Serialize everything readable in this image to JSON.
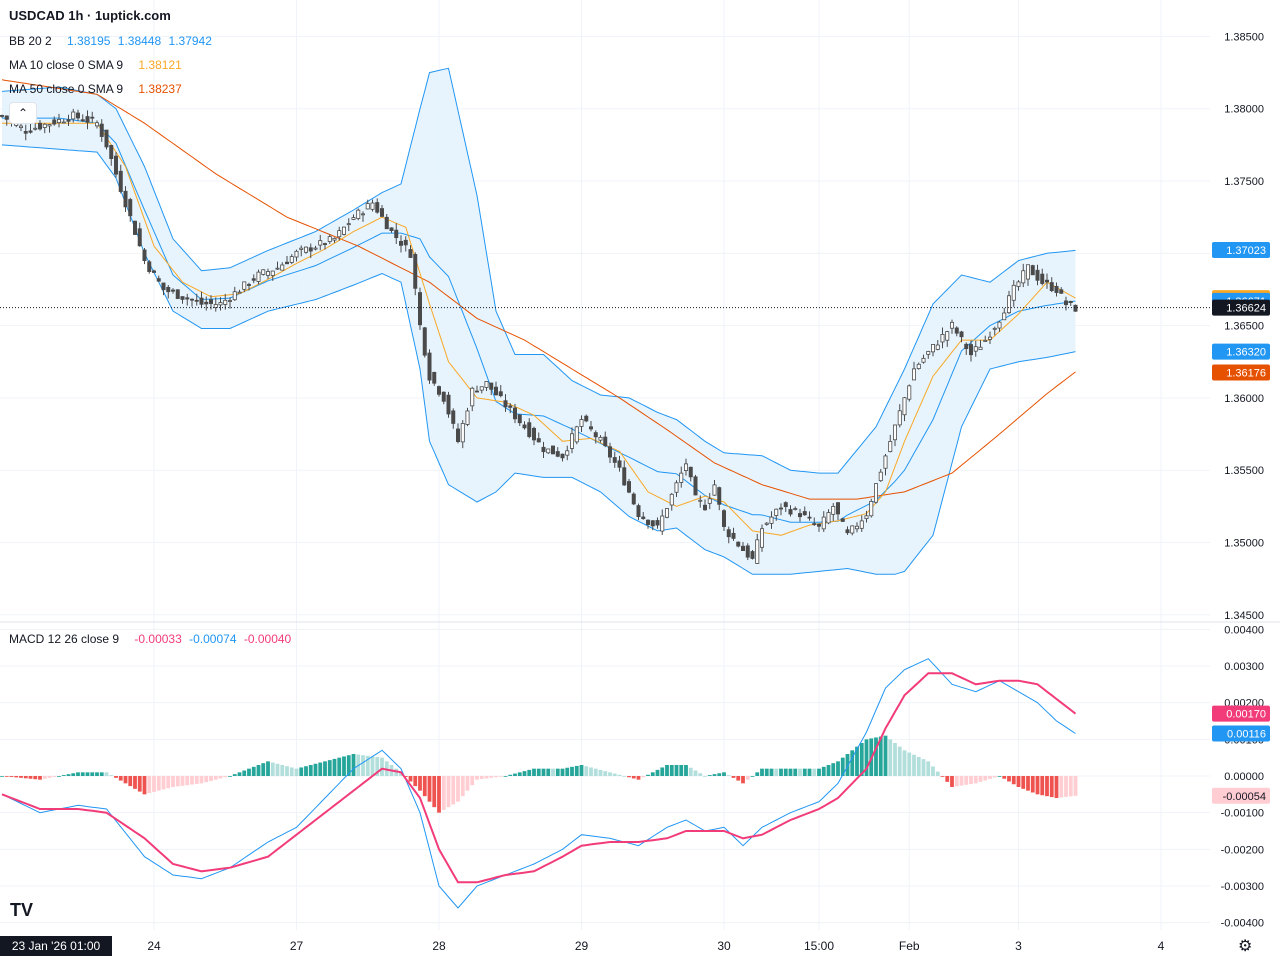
{
  "header": {
    "title": "USDCAD 1h · 1uptick.com",
    "bb": {
      "label": "BB 20 2",
      "basis": "1.38195",
      "upper": "1.38448",
      "lower": "1.37942"
    },
    "ma10": {
      "label": "MA 10 close 0 SMA 9",
      "value": "1.38121"
    },
    "ma50": {
      "label": "MA 50 close 0 SMA 9",
      "value": "1.38237"
    },
    "macd": {
      "label": "MACD 12 26 close 9",
      "hist": "-0.00033",
      "macd": "-0.00074",
      "signal": "-0.00040"
    }
  },
  "colors": {
    "up": "#26a69a",
    "down": "#ef5350",
    "upLight": "#b2dfdb",
    "downLight": "#ffcdd2",
    "bb": "#2196f3",
    "bbFill": "#e3f2fd",
    "ma10": "#f9a825",
    "ma50": "#e65100",
    "macdLine": "#2196f3",
    "signalLine": "#f23c79",
    "candle": "#4a4a4a"
  },
  "collapse_icon": "chevron-up-icon",
  "crosshair_date": "23 Jan '26  01:00",
  "chart_data": [
    {
      "type": "candlestick",
      "title": "USDCAD 1h · 1uptick.com",
      "ylim": [
        1.3445,
        1.386
      ],
      "y_ticks": [
        "1.38500",
        "1.38000",
        "1.37500",
        "1.37000",
        "1.36500",
        "1.36000",
        "1.35500",
        "1.35000",
        "1.34500"
      ],
      "x_ticks": [
        "24",
        "27",
        "28",
        "29",
        "30",
        "15:00",
        "Feb",
        "3",
        "4"
      ],
      "x_tick_index": [
        32,
        62,
        92,
        122,
        152,
        172,
        191,
        214,
        244
      ],
      "price_labels": [
        {
          "text": "1.37023",
          "value": 1.37023,
          "color": "#2196f3"
        },
        {
          "text": "1.36690",
          "value": 1.3669,
          "color": "#f9a825"
        },
        {
          "text": "1.36671",
          "value": 1.36671,
          "color": "#2196f3"
        },
        {
          "text": "1.36624",
          "value": 1.36624,
          "color": "#131722"
        },
        {
          "text": "1.36320",
          "value": 1.3632,
          "color": "#2196f3"
        },
        {
          "text": "1.36176",
          "value": 1.36176,
          "color": "#e65100"
        }
      ],
      "current_price": 1.36624,
      "close_keypoints": [
        [
          0,
          1.3795
        ],
        [
          5,
          1.3785
        ],
        [
          10,
          1.379
        ],
        [
          15,
          1.3795
        ],
        [
          20,
          1.379
        ],
        [
          22,
          1.3775
        ],
        [
          26,
          1.3735
        ],
        [
          30,
          1.3695
        ],
        [
          34,
          1.3675
        ],
        [
          38,
          1.367
        ],
        [
          42,
          1.3665
        ],
        [
          46,
          1.3665
        ],
        [
          50,
          1.3675
        ],
        [
          54,
          1.3685
        ],
        [
          58,
          1.369
        ],
        [
          62,
          1.37
        ],
        [
          66,
          1.3705
        ],
        [
          70,
          1.371
        ],
        [
          74,
          1.3725
        ],
        [
          78,
          1.3735
        ],
        [
          82,
          1.3715
        ],
        [
          86,
          1.37
        ],
        [
          88,
          1.365
        ],
        [
          90,
          1.3615
        ],
        [
          93,
          1.36
        ],
        [
          96,
          1.357
        ],
        [
          99,
          1.3605
        ],
        [
          102,
          1.361
        ],
        [
          106,
          1.3595
        ],
        [
          110,
          1.358
        ],
        [
          114,
          1.3565
        ],
        [
          118,
          1.356
        ],
        [
          122,
          1.3585
        ],
        [
          126,
          1.357
        ],
        [
          130,
          1.355
        ],
        [
          134,
          1.352
        ],
        [
          138,
          1.351
        ],
        [
          142,
          1.354
        ],
        [
          144,
          1.3555
        ],
        [
          146,
          1.353
        ],
        [
          148,
          1.3525
        ],
        [
          150,
          1.354
        ],
        [
          152,
          1.351
        ],
        [
          156,
          1.3495
        ],
        [
          158,
          1.3488
        ],
        [
          160,
          1.351
        ],
        [
          164,
          1.3525
        ],
        [
          168,
          1.352
        ],
        [
          172,
          1.351
        ],
        [
          175,
          1.3525
        ],
        [
          178,
          1.3505
        ],
        [
          182,
          1.352
        ],
        [
          186,
          1.356
        ],
        [
          189,
          1.359
        ],
        [
          192,
          1.362
        ],
        [
          196,
          1.3635
        ],
        [
          200,
          1.365
        ],
        [
          204,
          1.363
        ],
        [
          207,
          1.364
        ],
        [
          210,
          1.3655
        ],
        [
          213,
          1.3675
        ],
        [
          216,
          1.369
        ],
        [
          219,
          1.368
        ],
        [
          222,
          1.3675
        ],
        [
          224,
          1.3665
        ],
        [
          226,
          1.3662
        ]
      ],
      "ma10_keypoints": [
        [
          0,
          1.379
        ],
        [
          10,
          1.379
        ],
        [
          20,
          1.379
        ],
        [
          26,
          1.376
        ],
        [
          32,
          1.3705
        ],
        [
          38,
          1.368
        ],
        [
          44,
          1.367
        ],
        [
          50,
          1.3672
        ],
        [
          56,
          1.3682
        ],
        [
          62,
          1.3693
        ],
        [
          68,
          1.3703
        ],
        [
          74,
          1.3715
        ],
        [
          80,
          1.3725
        ],
        [
          85,
          1.3718
        ],
        [
          90,
          1.3665
        ],
        [
          94,
          1.3625
        ],
        [
          100,
          1.36
        ],
        [
          106,
          1.3597
        ],
        [
          112,
          1.3588
        ],
        [
          118,
          1.357
        ],
        [
          124,
          1.3572
        ],
        [
          130,
          1.3563
        ],
        [
          136,
          1.3535
        ],
        [
          142,
          1.3525
        ],
        [
          148,
          1.3532
        ],
        [
          152,
          1.3528
        ],
        [
          158,
          1.3508
        ],
        [
          164,
          1.3505
        ],
        [
          170,
          1.3512
        ],
        [
          176,
          1.3515
        ],
        [
          182,
          1.352
        ],
        [
          186,
          1.3535
        ],
        [
          190,
          1.357
        ],
        [
          196,
          1.3615
        ],
        [
          202,
          1.364
        ],
        [
          208,
          1.364
        ],
        [
          214,
          1.3658
        ],
        [
          220,
          1.368
        ],
        [
          226,
          1.3669
        ]
      ],
      "ma50_keypoints": [
        [
          0,
          1.382
        ],
        [
          20,
          1.381
        ],
        [
          30,
          1.379
        ],
        [
          45,
          1.3755
        ],
        [
          60,
          1.3725
        ],
        [
          75,
          1.3705
        ],
        [
          90,
          1.368
        ],
        [
          100,
          1.3655
        ],
        [
          110,
          1.364
        ],
        [
          120,
          1.362
        ],
        [
          130,
          1.36
        ],
        [
          140,
          1.3578
        ],
        [
          150,
          1.3555
        ],
        [
          160,
          1.354
        ],
        [
          170,
          1.353
        ],
        [
          180,
          1.353
        ],
        [
          190,
          1.3535
        ],
        [
          200,
          1.3548
        ],
        [
          210,
          1.3575
        ],
        [
          220,
          1.3603
        ],
        [
          226,
          1.3618
        ]
      ],
      "bb_upper_keypoints": [
        [
          0,
          1.3812
        ],
        [
          12,
          1.3815
        ],
        [
          20,
          1.381
        ],
        [
          24,
          1.38
        ],
        [
          30,
          1.376
        ],
        [
          36,
          1.371
        ],
        [
          42,
          1.3688
        ],
        [
          48,
          1.369
        ],
        [
          56,
          1.3702
        ],
        [
          66,
          1.3715
        ],
        [
          74,
          1.373
        ],
        [
          80,
          1.3742
        ],
        [
          84,
          1.3748
        ],
        [
          88,
          1.38
        ],
        [
          90,
          1.3825
        ],
        [
          94,
          1.3828
        ],
        [
          100,
          1.374
        ],
        [
          104,
          1.366
        ],
        [
          108,
          1.363
        ],
        [
          114,
          1.363
        ],
        [
          120,
          1.3612
        ],
        [
          126,
          1.3602
        ],
        [
          132,
          1.36
        ],
        [
          138,
          1.359
        ],
        [
          142,
          1.3585
        ],
        [
          148,
          1.357
        ],
        [
          152,
          1.3562
        ],
        [
          160,
          1.356
        ],
        [
          166,
          1.355
        ],
        [
          172,
          1.3548
        ],
        [
          176,
          1.3548
        ],
        [
          184,
          1.358
        ],
        [
          190,
          1.362
        ],
        [
          196,
          1.3665
        ],
        [
          202,
          1.3685
        ],
        [
          208,
          1.368
        ],
        [
          214,
          1.3695
        ],
        [
          220,
          1.37
        ],
        [
          226,
          1.3702
        ]
      ],
      "bb_lower_keypoints": [
        [
          0,
          1.3775
        ],
        [
          12,
          1.3772
        ],
        [
          20,
          1.377
        ],
        [
          24,
          1.3752
        ],
        [
          30,
          1.37
        ],
        [
          36,
          1.366
        ],
        [
          42,
          1.3648
        ],
        [
          48,
          1.3648
        ],
        [
          56,
          1.366
        ],
        [
          66,
          1.3668
        ],
        [
          74,
          1.3678
        ],
        [
          80,
          1.3686
        ],
        [
          84,
          1.368
        ],
        [
          88,
          1.362
        ],
        [
          90,
          1.357
        ],
        [
          94,
          1.354
        ],
        [
          100,
          1.3528
        ],
        [
          104,
          1.3535
        ],
        [
          108,
          1.3548
        ],
        [
          114,
          1.3545
        ],
        [
          120,
          1.3545
        ],
        [
          126,
          1.3535
        ],
        [
          132,
          1.3518
        ],
        [
          138,
          1.3508
        ],
        [
          142,
          1.351
        ],
        [
          148,
          1.3495
        ],
        [
          152,
          1.349
        ],
        [
          158,
          1.3478
        ],
        [
          166,
          1.3478
        ],
        [
          172,
          1.348
        ],
        [
          178,
          1.3482
        ],
        [
          184,
          1.3478
        ],
        [
          188,
          1.3478
        ],
        [
          190,
          1.348
        ],
        [
          196,
          1.3505
        ],
        [
          202,
          1.358
        ],
        [
          208,
          1.362
        ],
        [
          214,
          1.3625
        ],
        [
          220,
          1.3628
        ],
        [
          226,
          1.3632
        ]
      ]
    },
    {
      "type": "macd",
      "title": "MACD 12 26 close 9",
      "ylim": [
        -0.0042,
        0.0042
      ],
      "y_ticks": [
        "0.00400",
        "0.00300",
        "0.00200",
        "0.00100",
        "0.00000",
        "-0.00100",
        "-0.00200",
        "-0.00300",
        "-0.00400"
      ],
      "value_labels": [
        {
          "text": "0.00170",
          "value": 0.0017,
          "color": "#f23c79"
        },
        {
          "text": "0.00116",
          "value": 0.00116,
          "color": "#2196f3"
        },
        {
          "text": "-0.00054",
          "value": -0.00054,
          "color": "#ffcdd2"
        }
      ],
      "macd_keypoints": [
        [
          0,
          -0.0005
        ],
        [
          8,
          -0.001
        ],
        [
          16,
          -0.0008
        ],
        [
          22,
          -0.0009
        ],
        [
          30,
          -0.0022
        ],
        [
          36,
          -0.0027
        ],
        [
          42,
          -0.0028
        ],
        [
          48,
          -0.0025
        ],
        [
          56,
          -0.0018
        ],
        [
          62,
          -0.0014
        ],
        [
          68,
          -0.0006
        ],
        [
          74,
          0.0002
        ],
        [
          80,
          0.0007
        ],
        [
          84,
          0.0002
        ],
        [
          88,
          -0.001
        ],
        [
          92,
          -0.003
        ],
        [
          96,
          -0.0036
        ],
        [
          100,
          -0.003
        ],
        [
          106,
          -0.0027
        ],
        [
          112,
          -0.0024
        ],
        [
          118,
          -0.002
        ],
        [
          122,
          -0.0016
        ],
        [
          128,
          -0.0017
        ],
        [
          134,
          -0.0019
        ],
        [
          140,
          -0.0014
        ],
        [
          144,
          -0.0012
        ],
        [
          148,
          -0.0015
        ],
        [
          152,
          -0.0014
        ],
        [
          156,
          -0.0019
        ],
        [
          160,
          -0.0014
        ],
        [
          166,
          -0.001
        ],
        [
          172,
          -0.0007
        ],
        [
          176,
          -0.0002
        ],
        [
          182,
          0.0012
        ],
        [
          186,
          0.0024
        ],
        [
          190,
          0.0029
        ],
        [
          195,
          0.0032
        ],
        [
          200,
          0.0025
        ],
        [
          205,
          0.0023
        ],
        [
          210,
          0.0026
        ],
        [
          214,
          0.0023
        ],
        [
          218,
          0.002
        ],
        [
          222,
          0.0015
        ],
        [
          226,
          0.00116
        ]
      ],
      "signal_keypoints": [
        [
          0,
          -0.0005
        ],
        [
          8,
          -0.0009
        ],
        [
          16,
          -0.0009
        ],
        [
          22,
          -0.001
        ],
        [
          30,
          -0.0017
        ],
        [
          36,
          -0.0024
        ],
        [
          42,
          -0.0026
        ],
        [
          48,
          -0.0025
        ],
        [
          56,
          -0.0022
        ],
        [
          62,
          -0.0016
        ],
        [
          68,
          -0.001
        ],
        [
          74,
          -0.0004
        ],
        [
          80,
          0.0002
        ],
        [
          84,
          0.0001
        ],
        [
          88,
          -0.0006
        ],
        [
          92,
          -0.002
        ],
        [
          96,
          -0.0029
        ],
        [
          100,
          -0.0029
        ],
        [
          106,
          -0.0027
        ],
        [
          112,
          -0.0026
        ],
        [
          118,
          -0.0022
        ],
        [
          122,
          -0.0019
        ],
        [
          128,
          -0.0018
        ],
        [
          134,
          -0.0018
        ],
        [
          140,
          -0.0017
        ],
        [
          144,
          -0.0015
        ],
        [
          148,
          -0.0015
        ],
        [
          152,
          -0.0015
        ],
        [
          156,
          -0.0017
        ],
        [
          160,
          -0.0016
        ],
        [
          166,
          -0.0012
        ],
        [
          172,
          -0.0009
        ],
        [
          176,
          -0.0006
        ],
        [
          182,
          0.0002
        ],
        [
          186,
          0.0013
        ],
        [
          190,
          0.0022
        ],
        [
          195,
          0.0028
        ],
        [
          200,
          0.0028
        ],
        [
          205,
          0.0025
        ],
        [
          210,
          0.0026
        ],
        [
          214,
          0.0026
        ],
        [
          218,
          0.0025
        ],
        [
          222,
          0.0021
        ],
        [
          226,
          0.0017
        ]
      ]
    }
  ]
}
